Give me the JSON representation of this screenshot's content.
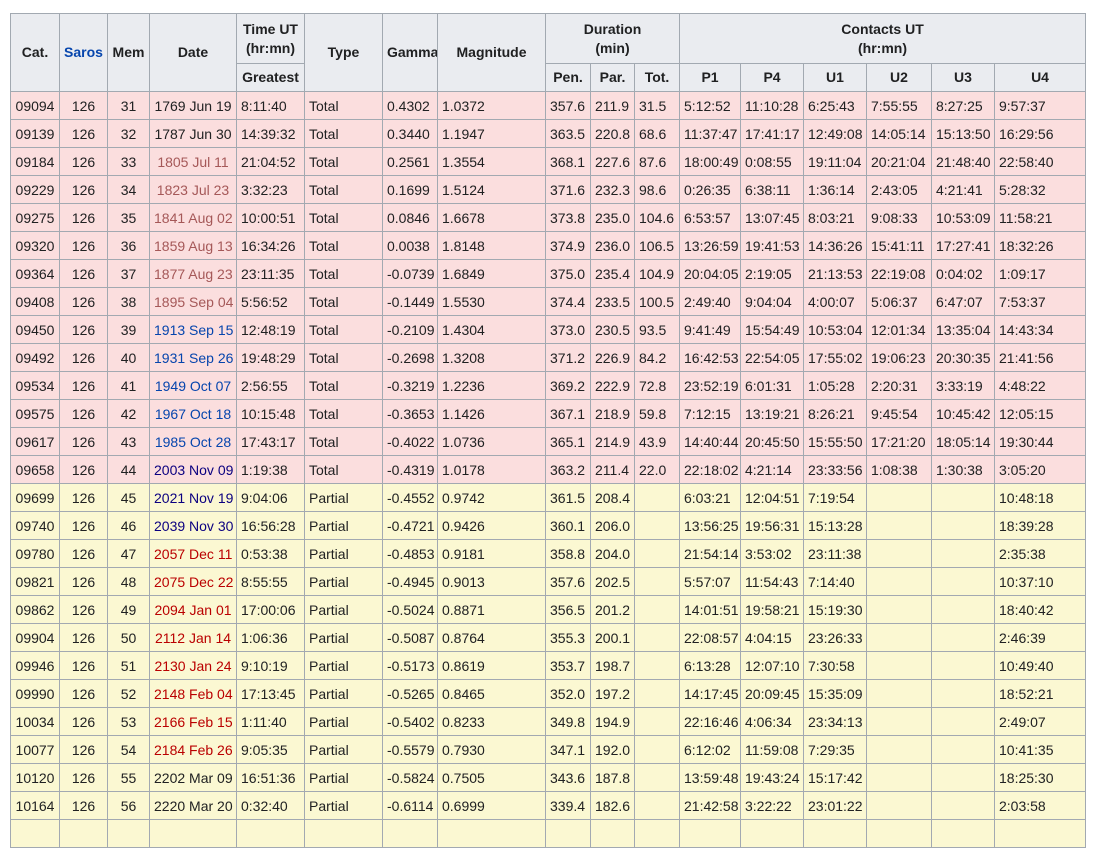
{
  "table": {
    "headers": {
      "cat": "Cat.",
      "saros": "Saros",
      "mem": "Mem",
      "date": "Date",
      "time_ut_line1": "Time UT",
      "time_ut_line2": "(hr:mn)",
      "greatest": "Greatest",
      "type": "Type",
      "gamma": "Gamma",
      "magnitude": "Magnitude",
      "duration_line1": "Duration",
      "duration_line2": "(min)",
      "pen": "Pen.",
      "par": "Par.",
      "tot": "Tot.",
      "contacts_line1": "Contacts UT",
      "contacts_line2": "(hr:mn)",
      "p1": "P1",
      "p4": "P4",
      "u1": "U1",
      "u2": "U2",
      "u3": "U3",
      "u4": "U4"
    },
    "colors": {
      "text": "#202122",
      "border": "#a2a9b1",
      "headerbg": "#eaecf0",
      "totalbg": "#fbdede",
      "partialbg": "#fbf8d2",
      "link": "#0645ad",
      "visited": "#0b0080",
      "redlink": "#ba0000",
      "redvisited": "#a55858"
    },
    "column_order": [
      "cat",
      "saros",
      "mem",
      "date",
      "greatest",
      "type",
      "gamma",
      "magnitude",
      "pen",
      "par",
      "tot",
      "p1",
      "p4",
      "u1",
      "u2",
      "u3",
      "u4"
    ],
    "centered_columns": [
      "cat",
      "saros",
      "mem",
      "date"
    ],
    "next_row_clipped": true,
    "rows": [
      {
        "cat": "09094",
        "saros": "126",
        "mem": "31",
        "date": "1769 Jun 19",
        "date_style": "plain",
        "greatest": "8:11:40",
        "type": "Total",
        "gamma": "0.4302",
        "magnitude": "1.0372",
        "pen": "357.6",
        "par": "211.9",
        "tot": "31.5",
        "p1": "5:12:52",
        "p4": "11:10:28",
        "u1": "6:25:43",
        "u2": "7:55:55",
        "u3": "8:27:25",
        "u4": "9:57:37"
      },
      {
        "cat": "09139",
        "saros": "126",
        "mem": "32",
        "date": "1787 Jun 30",
        "date_style": "plain",
        "greatest": "14:39:32",
        "type": "Total",
        "gamma": "0.3440",
        "magnitude": "1.1947",
        "pen": "363.5",
        "par": "220.8",
        "tot": "68.6",
        "p1": "11:37:47",
        "p4": "17:41:17",
        "u1": "12:49:08",
        "u2": "14:05:14",
        "u3": "15:13:50",
        "u4": "16:29:56"
      },
      {
        "cat": "09184",
        "saros": "126",
        "mem": "33",
        "date": "1805 Jul 11",
        "date_style": "redvisited",
        "greatest": "21:04:52",
        "type": "Total",
        "gamma": "0.2561",
        "magnitude": "1.3554",
        "pen": "368.1",
        "par": "227.6",
        "tot": "87.6",
        "p1": "18:00:49",
        "p4": "0:08:55",
        "u1": "19:11:04",
        "u2": "20:21:04",
        "u3": "21:48:40",
        "u4": "22:58:40"
      },
      {
        "cat": "09229",
        "saros": "126",
        "mem": "34",
        "date": "1823 Jul 23",
        "date_style": "redvisited",
        "greatest": "3:32:23",
        "type": "Total",
        "gamma": "0.1699",
        "magnitude": "1.5124",
        "pen": "371.6",
        "par": "232.3",
        "tot": "98.6",
        "p1": "0:26:35",
        "p4": "6:38:11",
        "u1": "1:36:14",
        "u2": "2:43:05",
        "u3": "4:21:41",
        "u4": "5:28:32"
      },
      {
        "cat": "09275",
        "saros": "126",
        "mem": "35",
        "date": "1841 Aug 02",
        "date_style": "redvisited",
        "greatest": "10:00:51",
        "type": "Total",
        "gamma": "0.0846",
        "magnitude": "1.6678",
        "pen": "373.8",
        "par": "235.0",
        "tot": "104.6",
        "p1": "6:53:57",
        "p4": "13:07:45",
        "u1": "8:03:21",
        "u2": "9:08:33",
        "u3": "10:53:09",
        "u4": "11:58:21"
      },
      {
        "cat": "09320",
        "saros": "126",
        "mem": "36",
        "date": "1859 Aug 13",
        "date_style": "redvisited",
        "greatest": "16:34:26",
        "type": "Total",
        "gamma": "0.0038",
        "magnitude": "1.8148",
        "pen": "374.9",
        "par": "236.0",
        "tot": "106.5",
        "p1": "13:26:59",
        "p4": "19:41:53",
        "u1": "14:36:26",
        "u2": "15:41:11",
        "u3": "17:27:41",
        "u4": "18:32:26"
      },
      {
        "cat": "09364",
        "saros": "126",
        "mem": "37",
        "date": "1877 Aug 23",
        "date_style": "redvisited",
        "greatest": "23:11:35",
        "type": "Total",
        "gamma": "-0.0739",
        "magnitude": "1.6849",
        "pen": "375.0",
        "par": "235.4",
        "tot": "104.9",
        "p1": "20:04:05",
        "p4": "2:19:05",
        "u1": "21:13:53",
        "u2": "22:19:08",
        "u3": "0:04:02",
        "u4": "1:09:17"
      },
      {
        "cat": "09408",
        "saros": "126",
        "mem": "38",
        "date": "1895 Sep 04",
        "date_style": "redvisited",
        "greatest": "5:56:52",
        "type": "Total",
        "gamma": "-0.1449",
        "magnitude": "1.5530",
        "pen": "374.4",
        "par": "233.5",
        "tot": "100.5",
        "p1": "2:49:40",
        "p4": "9:04:04",
        "u1": "4:00:07",
        "u2": "5:06:37",
        "u3": "6:47:07",
        "u4": "7:53:37"
      },
      {
        "cat": "09450",
        "saros": "126",
        "mem": "39",
        "date": "1913 Sep 15",
        "date_style": "link",
        "greatest": "12:48:19",
        "type": "Total",
        "gamma": "-0.2109",
        "magnitude": "1.4304",
        "pen": "373.0",
        "par": "230.5",
        "tot": "93.5",
        "p1": "9:41:49",
        "p4": "15:54:49",
        "u1": "10:53:04",
        "u2": "12:01:34",
        "u3": "13:35:04",
        "u4": "14:43:34"
      },
      {
        "cat": "09492",
        "saros": "126",
        "mem": "40",
        "date": "1931 Sep 26",
        "date_style": "link",
        "greatest": "19:48:29",
        "type": "Total",
        "gamma": "-0.2698",
        "magnitude": "1.3208",
        "pen": "371.2",
        "par": "226.9",
        "tot": "84.2",
        "p1": "16:42:53",
        "p4": "22:54:05",
        "u1": "17:55:02",
        "u2": "19:06:23",
        "u3": "20:30:35",
        "u4": "21:41:56"
      },
      {
        "cat": "09534",
        "saros": "126",
        "mem": "41",
        "date": "1949 Oct 07",
        "date_style": "link",
        "greatest": "2:56:55",
        "type": "Total",
        "gamma": "-0.3219",
        "magnitude": "1.2236",
        "pen": "369.2",
        "par": "222.9",
        "tot": "72.8",
        "p1": "23:52:19",
        "p4": "6:01:31",
        "u1": "1:05:28",
        "u2": "2:20:31",
        "u3": "3:33:19",
        "u4": "4:48:22"
      },
      {
        "cat": "09575",
        "saros": "126",
        "mem": "42",
        "date": "1967 Oct 18",
        "date_style": "link",
        "greatest": "10:15:48",
        "type": "Total",
        "gamma": "-0.3653",
        "magnitude": "1.1426",
        "pen": "367.1",
        "par": "218.9",
        "tot": "59.8",
        "p1": "7:12:15",
        "p4": "13:19:21",
        "u1": "8:26:21",
        "u2": "9:45:54",
        "u3": "10:45:42",
        "u4": "12:05:15"
      },
      {
        "cat": "09617",
        "saros": "126",
        "mem": "43",
        "date": "1985 Oct 28",
        "date_style": "link",
        "greatest": "17:43:17",
        "type": "Total",
        "gamma": "-0.4022",
        "magnitude": "1.0736",
        "pen": "365.1",
        "par": "214.9",
        "tot": "43.9",
        "p1": "14:40:44",
        "p4": "20:45:50",
        "u1": "15:55:50",
        "u2": "17:21:20",
        "u3": "18:05:14",
        "u4": "19:30:44"
      },
      {
        "cat": "09658",
        "saros": "126",
        "mem": "44",
        "date": "2003 Nov 09",
        "date_style": "visited",
        "greatest": "1:19:38",
        "type": "Total",
        "gamma": "-0.4319",
        "magnitude": "1.0178",
        "pen": "363.2",
        "par": "211.4",
        "tot": "22.0",
        "p1": "22:18:02",
        "p4": "4:21:14",
        "u1": "23:33:56",
        "u2": "1:08:38",
        "u3": "1:30:38",
        "u4": "3:05:20"
      },
      {
        "cat": "09699",
        "saros": "126",
        "mem": "45",
        "date": "2021 Nov 19",
        "date_style": "visited",
        "greatest": "9:04:06",
        "type": "Partial",
        "gamma": "-0.4552",
        "magnitude": "0.9742",
        "pen": "361.5",
        "par": "208.4",
        "tot": "",
        "p1": "6:03:21",
        "p4": "12:04:51",
        "u1": "7:19:54",
        "u2": "",
        "u3": "",
        "u4": "10:48:18"
      },
      {
        "cat": "09740",
        "saros": "126",
        "mem": "46",
        "date": "2039 Nov 30",
        "date_style": "visited",
        "greatest": "16:56:28",
        "type": "Partial",
        "gamma": "-0.4721",
        "magnitude": "0.9426",
        "pen": "360.1",
        "par": "206.0",
        "tot": "",
        "p1": "13:56:25",
        "p4": "19:56:31",
        "u1": "15:13:28",
        "u2": "",
        "u3": "",
        "u4": "18:39:28"
      },
      {
        "cat": "09780",
        "saros": "126",
        "mem": "47",
        "date": "2057 Dec 11",
        "date_style": "redlink",
        "greatest": "0:53:38",
        "type": "Partial",
        "gamma": "-0.4853",
        "magnitude": "0.9181",
        "pen": "358.8",
        "par": "204.0",
        "tot": "",
        "p1": "21:54:14",
        "p4": "3:53:02",
        "u1": "23:11:38",
        "u2": "",
        "u3": "",
        "u4": "2:35:38"
      },
      {
        "cat": "09821",
        "saros": "126",
        "mem": "48",
        "date": "2075 Dec 22",
        "date_style": "redlink",
        "greatest": "8:55:55",
        "type": "Partial",
        "gamma": "-0.4945",
        "magnitude": "0.9013",
        "pen": "357.6",
        "par": "202.5",
        "tot": "",
        "p1": "5:57:07",
        "p4": "11:54:43",
        "u1": "7:14:40",
        "u2": "",
        "u3": "",
        "u4": "10:37:10"
      },
      {
        "cat": "09862",
        "saros": "126",
        "mem": "49",
        "date": "2094 Jan 01",
        "date_style": "redlink",
        "greatest": "17:00:06",
        "type": "Partial",
        "gamma": "-0.5024",
        "magnitude": "0.8871",
        "pen": "356.5",
        "par": "201.2",
        "tot": "",
        "p1": "14:01:51",
        "p4": "19:58:21",
        "u1": "15:19:30",
        "u2": "",
        "u3": "",
        "u4": "18:40:42"
      },
      {
        "cat": "09904",
        "saros": "126",
        "mem": "50",
        "date": "2112 Jan 14",
        "date_style": "redlink",
        "greatest": "1:06:36",
        "type": "Partial",
        "gamma": "-0.5087",
        "magnitude": "0.8764",
        "pen": "355.3",
        "par": "200.1",
        "tot": "",
        "p1": "22:08:57",
        "p4": "4:04:15",
        "u1": "23:26:33",
        "u2": "",
        "u3": "",
        "u4": "2:46:39"
      },
      {
        "cat": "09946",
        "saros": "126",
        "mem": "51",
        "date": "2130 Jan 24",
        "date_style": "redlink",
        "greatest": "9:10:19",
        "type": "Partial",
        "gamma": "-0.5173",
        "magnitude": "0.8619",
        "pen": "353.7",
        "par": "198.7",
        "tot": "",
        "p1": "6:13:28",
        "p4": "12:07:10",
        "u1": "7:30:58",
        "u2": "",
        "u3": "",
        "u4": "10:49:40"
      },
      {
        "cat": "09990",
        "saros": "126",
        "mem": "52",
        "date": "2148 Feb 04",
        "date_style": "redlink",
        "greatest": "17:13:45",
        "type": "Partial",
        "gamma": "-0.5265",
        "magnitude": "0.8465",
        "pen": "352.0",
        "par": "197.2",
        "tot": "",
        "p1": "14:17:45",
        "p4": "20:09:45",
        "u1": "15:35:09",
        "u2": "",
        "u3": "",
        "u4": "18:52:21"
      },
      {
        "cat": "10034",
        "saros": "126",
        "mem": "53",
        "date": "2166 Feb 15",
        "date_style": "redlink",
        "greatest": "1:11:40",
        "type": "Partial",
        "gamma": "-0.5402",
        "magnitude": "0.8233",
        "pen": "349.8",
        "par": "194.9",
        "tot": "",
        "p1": "22:16:46",
        "p4": "4:06:34",
        "u1": "23:34:13",
        "u2": "",
        "u3": "",
        "u4": "2:49:07"
      },
      {
        "cat": "10077",
        "saros": "126",
        "mem": "54",
        "date": "2184 Feb 26",
        "date_style": "redlink",
        "greatest": "9:05:35",
        "type": "Partial",
        "gamma": "-0.5579",
        "magnitude": "0.7930",
        "pen": "347.1",
        "par": "192.0",
        "tot": "",
        "p1": "6:12:02",
        "p4": "11:59:08",
        "u1": "7:29:35",
        "u2": "",
        "u3": "",
        "u4": "10:41:35"
      },
      {
        "cat": "10120",
        "saros": "126",
        "mem": "55",
        "date": "2202 Mar 09",
        "date_style": "plain",
        "greatest": "16:51:36",
        "type": "Partial",
        "gamma": "-0.5824",
        "magnitude": "0.7505",
        "pen": "343.6",
        "par": "187.8",
        "tot": "",
        "p1": "13:59:48",
        "p4": "19:43:24",
        "u1": "15:17:42",
        "u2": "",
        "u3": "",
        "u4": "18:25:30"
      },
      {
        "cat": "10164",
        "saros": "126",
        "mem": "56",
        "date": "2220 Mar 20",
        "date_style": "plain",
        "greatest": "0:32:40",
        "type": "Partial",
        "gamma": "-0.6114",
        "magnitude": "0.6999",
        "pen": "339.4",
        "par": "182.6",
        "tot": "",
        "p1": "21:42:58",
        "p4": "3:22:22",
        "u1": "23:01:22",
        "u2": "",
        "u3": "",
        "u4": "2:03:58"
      }
    ]
  }
}
